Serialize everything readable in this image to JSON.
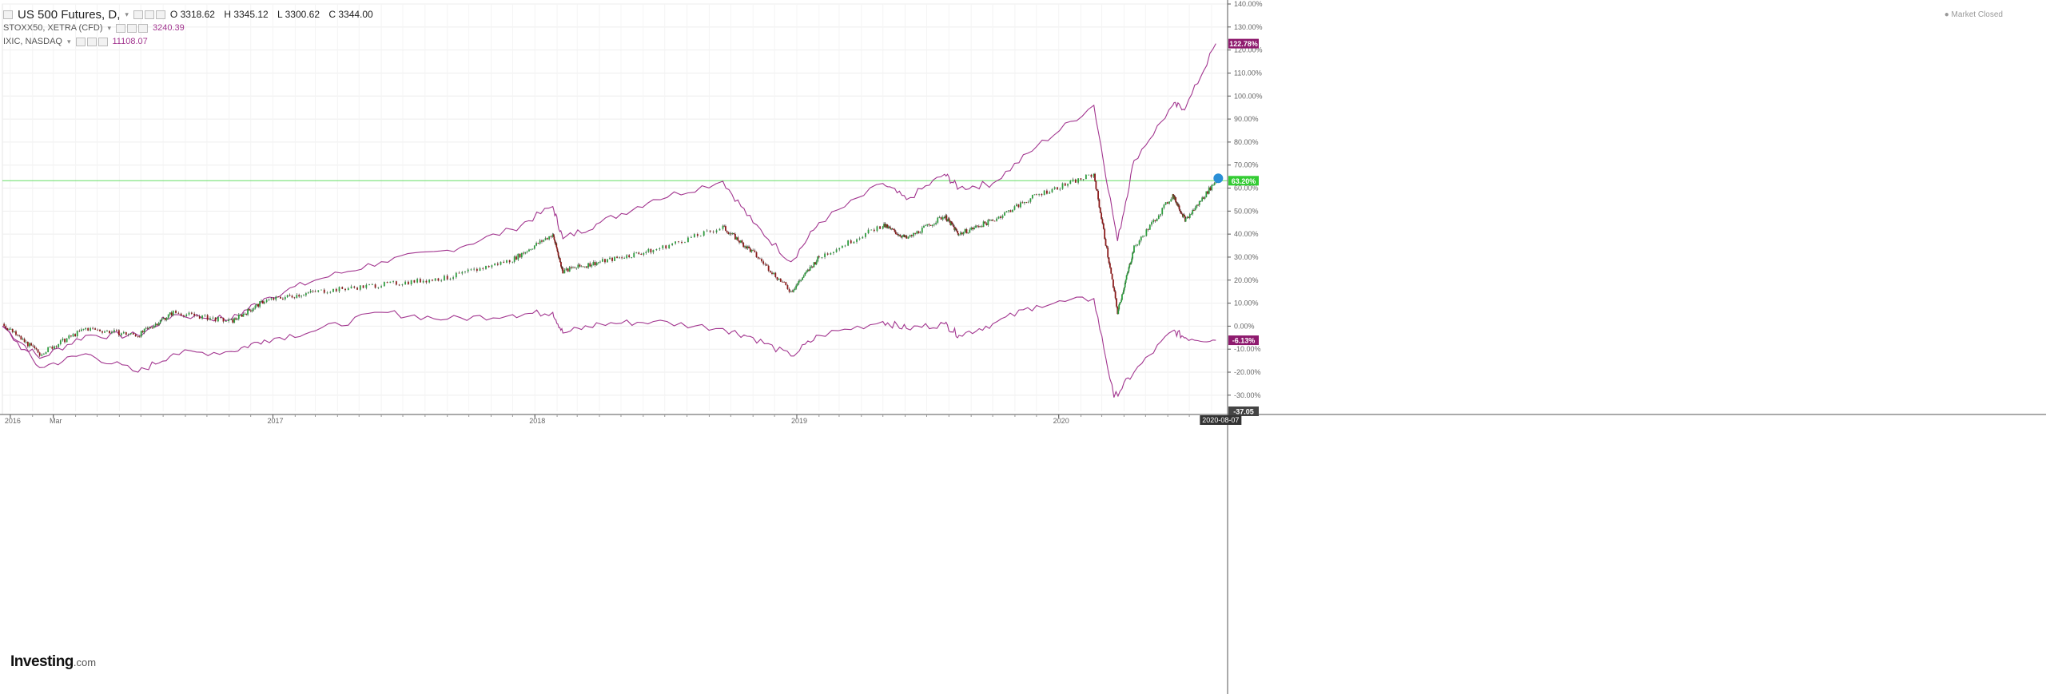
{
  "legend": {
    "main_title": "US 500 Futures, D,",
    "ohlc": {
      "open": "O 3318.62",
      "high": "H 3345.12",
      "low": "L 3300.62",
      "close": "C 3344.00"
    },
    "series2_label": "STOXX50, XETRA (CFD)",
    "series2_value": "3240.39",
    "series3_label": "IXIC, NASDAQ",
    "series3_value": "11108.07"
  },
  "status": "● Market Closed",
  "brand": {
    "name": "Investing",
    "suffix": ".com"
  },
  "price_labels": {
    "nasdaq": "122.78%",
    "spx": "63.20%",
    "stoxx": "-6.13%",
    "bottom": "-37.05",
    "date": "2020-08-07"
  },
  "colors": {
    "spx_up": "#2e9d3e",
    "spx_down": "#8b1a1a",
    "compare": "#a2358f",
    "hline": "#66dd66",
    "axis_text": "#666666"
  },
  "chart_data": {
    "type": "line",
    "title": "US 500 Futures, D,",
    "xlabel": "",
    "ylabel": "",
    "ylim": [
      -37,
      140
    ],
    "y_ticks": [
      "140.00%",
      "130.00%",
      "120.00%",
      "110.00%",
      "100.00%",
      "90.00%",
      "80.00%",
      "70.00%",
      "60.00%",
      "50.00%",
      "40.00%",
      "30.00%",
      "20.00%",
      "10.00%",
      "0.00%",
      "-10.00%",
      "-20.00%",
      "-30.00%"
    ],
    "y_tick_values": [
      140,
      130,
      120,
      110,
      100,
      90,
      80,
      70,
      60,
      50,
      40,
      30,
      20,
      10,
      0,
      -10,
      -20,
      -30
    ],
    "x_ticks": [
      "2016",
      "Mar",
      "2017",
      "2018",
      "2019",
      "2020"
    ],
    "x_tick_values": [
      "2016-01-01",
      "2016-03-01",
      "2017-01-01",
      "2018-01-01",
      "2019-01-01",
      "2020-01-01"
    ],
    "x_range": [
      "2015-12-21",
      "2020-08-20"
    ],
    "horizontal_line": 63.2,
    "grid": true,
    "series": [
      {
        "name": "US 500 Futures",
        "style": "candlestick",
        "x": [
          "2015-12-21",
          "2016-02-11",
          "2016-04-15",
          "2016-06-27",
          "2016-08-15",
          "2016-11-04",
          "2016-12-20",
          "2017-03-01",
          "2017-06-01",
          "2017-09-01",
          "2017-12-01",
          "2018-01-26",
          "2018-02-09",
          "2018-04-02",
          "2018-06-15",
          "2018-09-20",
          "2018-11-01",
          "2018-12-24",
          "2019-02-01",
          "2019-05-01",
          "2019-06-03",
          "2019-07-26",
          "2019-08-15",
          "2019-10-01",
          "2019-12-01",
          "2020-02-19",
          "2020-03-23",
          "2020-04-15",
          "2020-06-08",
          "2020-06-26",
          "2020-08-07"
        ],
        "values": [
          1,
          -12,
          -1,
          -4,
          6,
          2,
          11,
          15,
          18,
          21,
          29,
          40,
          24,
          28,
          33,
          43,
          32,
          15,
          30,
          44,
          38,
          48,
          40,
          46,
          57,
          66,
          6,
          34,
          57,
          46,
          63.2
        ]
      },
      {
        "name": "IXIC, NASDAQ",
        "style": "line",
        "x": [
          "2015-12-21",
          "2016-02-11",
          "2016-04-15",
          "2016-06-27",
          "2016-08-15",
          "2016-11-04",
          "2016-12-20",
          "2017-03-01",
          "2017-06-01",
          "2017-09-01",
          "2017-12-01",
          "2018-01-26",
          "2018-02-09",
          "2018-04-02",
          "2018-06-15",
          "2018-09-20",
          "2018-11-01",
          "2018-12-24",
          "2019-02-01",
          "2019-05-01",
          "2019-06-03",
          "2019-07-26",
          "2019-08-15",
          "2019-10-01",
          "2019-12-01",
          "2020-02-19",
          "2020-03-23",
          "2020-04-15",
          "2020-06-08",
          "2020-06-26",
          "2020-08-07"
        ],
        "values": [
          0,
          -14,
          -4,
          -4,
          5,
          3,
          12,
          20,
          28,
          33,
          42,
          52,
          38,
          45,
          55,
          63,
          45,
          28,
          45,
          62,
          55,
          66,
          60,
          62,
          78,
          96,
          37,
          72,
          96,
          95,
          122.78
        ]
      },
      {
        "name": "STOXX50, XETRA (CFD)",
        "style": "line",
        "x": [
          "2015-12-21",
          "2016-02-11",
          "2016-04-15",
          "2016-06-27",
          "2016-08-15",
          "2016-11-04",
          "2016-12-20",
          "2017-03-01",
          "2017-06-01",
          "2017-09-01",
          "2017-12-01",
          "2018-01-26",
          "2018-02-09",
          "2018-04-02",
          "2018-06-15",
          "2018-09-20",
          "2018-11-01",
          "2018-12-24",
          "2019-02-01",
          "2019-05-01",
          "2019-06-03",
          "2019-07-26",
          "2019-08-15",
          "2019-10-01",
          "2019-12-01",
          "2020-02-19",
          "2020-03-18",
          "2020-04-15",
          "2020-06-08",
          "2020-06-26",
          "2020-08-07"
        ],
        "values": [
          0,
          -18,
          -12,
          -20,
          -12,
          -11,
          -6,
          -2,
          6,
          3,
          5,
          6,
          -3,
          1,
          2,
          -1,
          -5,
          -13,
          -4,
          2,
          -1,
          1,
          -4,
          1,
          9,
          12,
          -31,
          -20,
          -2,
          -5,
          -6.13
        ]
      }
    ]
  }
}
